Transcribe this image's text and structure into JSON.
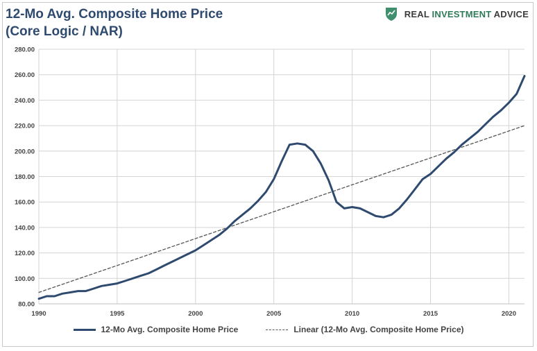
{
  "header": {
    "title_line1": "12-Mo Avg. Composite Home Price",
    "title_line2": "(Core Logic / NAR)"
  },
  "logo": {
    "icon": "shield-icon",
    "word1": "REAL ",
    "word2": "INVESTMENT",
    "word3": " ADVICE"
  },
  "chart_data": {
    "type": "line",
    "ylim": [
      80,
      280
    ],
    "xlim": [
      1990,
      2021
    ],
    "yticks": [
      "80.00",
      "100.00",
      "120.00",
      "140.00",
      "160.00",
      "180.00",
      "200.00",
      "220.00",
      "240.00",
      "260.00",
      "280.00"
    ],
    "xticks": [
      "1990",
      "1995",
      "2000",
      "2005",
      "2010",
      "2015",
      "2020"
    ],
    "grid": true,
    "legend_position": "bottom",
    "series": [
      {
        "name": "12-Mo Avg. Composite Home Price",
        "color": "#2f4a6f",
        "style": "solid",
        "x": [
          1990,
          1990.5,
          1991,
          1991.5,
          1992,
          1992.5,
          1993,
          1993.5,
          1994,
          1994.5,
          1995,
          1995.5,
          1996,
          1996.5,
          1997,
          1997.5,
          1998,
          1998.5,
          1999,
          1999.5,
          2000,
          2000.5,
          2001,
          2001.5,
          2002,
          2002.5,
          2003,
          2003.5,
          2004,
          2004.5,
          2005,
          2005.5,
          2006,
          2006.5,
          2007,
          2007.5,
          2008,
          2008.5,
          2009,
          2009.5,
          2010,
          2010.5,
          2011,
          2011.5,
          2012,
          2012.5,
          2013,
          2013.5,
          2014,
          2014.5,
          2015,
          2015.5,
          2016,
          2016.5,
          2017,
          2017.5,
          2018,
          2018.5,
          2019,
          2019.5,
          2020,
          2020.5,
          2021
        ],
        "values": [
          84,
          86,
          86,
          88,
          89,
          90,
          90,
          92,
          94,
          95,
          96,
          98,
          100,
          102,
          104,
          107,
          110,
          113,
          116,
          119,
          122,
          126,
          130,
          134,
          139,
          145,
          150,
          155,
          161,
          168,
          178,
          192,
          205,
          206,
          205,
          200,
          190,
          177,
          160,
          155,
          156,
          155,
          152,
          149,
          148,
          150,
          155,
          162,
          170,
          178,
          182,
          188,
          194,
          199,
          205,
          210,
          215,
          221,
          227,
          232,
          238,
          245,
          259
        ]
      },
      {
        "name": "Linear (12-Mo Avg. Composite Home Price)",
        "color": "#555555",
        "style": "dashed",
        "x": [
          1990,
          2021
        ],
        "values": [
          89,
          220
        ]
      }
    ]
  }
}
